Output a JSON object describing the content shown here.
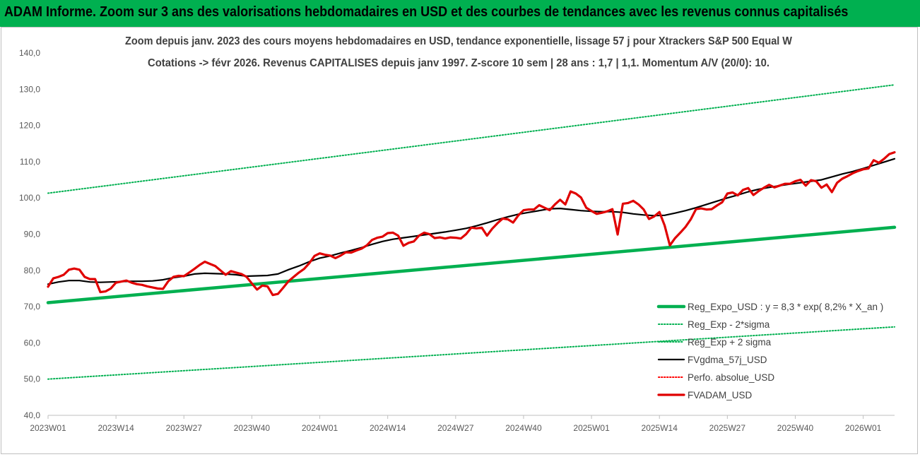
{
  "banner": {
    "title": "ADAM Informe. Zoom sur 3 ans des valorisations hebdomadaires en USD et des courbes de tendances avec les revenus connus capitalisés",
    "background": "#00b050"
  },
  "chart_data": {
    "type": "line",
    "title_lines": [
      "Zoom depuis janv. 2023 des cours moyens hebdomadaires en USD, tendance exponentielle, lissage 57 j pour Xtrackers S&P 500 Equal W",
      "Cotations -> févr 2026. Revenus CAPITALISES depuis janv 1997. Z-score 10 sem | 28 ans : 1,7 | 1,1. Momentum A/V (20/0): 10."
    ],
    "ylim": [
      40,
      140
    ],
    "yticks": [
      "40,0",
      "50,0",
      "60,0",
      "70,0",
      "80,0",
      "90,0",
      "100,0",
      "110,0",
      "120,0",
      "130,0",
      "140,0"
    ],
    "x_range_weeks": [
      0,
      162
    ],
    "xticks": [
      {
        "label": "2023W01",
        "week": 0
      },
      {
        "label": "2023W14",
        "week": 13
      },
      {
        "label": "2023W27",
        "week": 26
      },
      {
        "label": "2023W40",
        "week": 39
      },
      {
        "label": "2024W01",
        "week": 52
      },
      {
        "label": "2024W14",
        "week": 65
      },
      {
        "label": "2024W27",
        "week": 78
      },
      {
        "label": "2024W40",
        "week": 91
      },
      {
        "label": "2025W01",
        "week": 104
      },
      {
        "label": "2025W14",
        "week": 117
      },
      {
        "label": "2025W27",
        "week": 130
      },
      {
        "label": "2025W40",
        "week": 143
      },
      {
        "label": "2026W01",
        "week": 156
      }
    ],
    "grid": false,
    "legend_position": "bottom-right",
    "series": [
      {
        "name": "Reg_Expo_USD : y = 8,3 * exp( 8,2% *  X_an )",
        "style": "solid-thick",
        "color": "#00b050",
        "points": [
          [
            0,
            71.1
          ],
          [
            162,
            91.9
          ]
        ]
      },
      {
        "name": "Reg_Exp - 2*sigma",
        "style": "dotted",
        "color": "#00b050",
        "points": [
          [
            0,
            50.0
          ],
          [
            162,
            64.4
          ]
        ]
      },
      {
        "name": "Reg_Exp + 2 sigma",
        "style": "dotted",
        "color": "#00b050",
        "points": [
          [
            0,
            101.3
          ],
          [
            162,
            131.2
          ]
        ]
      },
      {
        "name": "FVgdma_57j_USD",
        "style": "solid",
        "color": "#000000",
        "points": [
          [
            0,
            76.2
          ],
          [
            2,
            76.8
          ],
          [
            4,
            77.2
          ],
          [
            6,
            77.2
          ],
          [
            8,
            76.8
          ],
          [
            10,
            76.7
          ],
          [
            12,
            76.8
          ],
          [
            14,
            76.9
          ],
          [
            16,
            77.0
          ],
          [
            18,
            77.0
          ],
          [
            20,
            77.1
          ],
          [
            22,
            77.4
          ],
          [
            24,
            78.0
          ],
          [
            26,
            78.4
          ],
          [
            28,
            79.0
          ],
          [
            30,
            79.2
          ],
          [
            32,
            79.1
          ],
          [
            34,
            79.0
          ],
          [
            36,
            78.8
          ],
          [
            38,
            78.4
          ],
          [
            40,
            78.5
          ],
          [
            42,
            78.6
          ],
          [
            44,
            79.0
          ],
          [
            46,
            80.2
          ],
          [
            48,
            81.2
          ],
          [
            50,
            82.4
          ],
          [
            52,
            83.4
          ],
          [
            54,
            84.0
          ],
          [
            56,
            84.8
          ],
          [
            58,
            85.5
          ],
          [
            60,
            86.3
          ],
          [
            62,
            87.2
          ],
          [
            64,
            88.0
          ],
          [
            66,
            88.6
          ],
          [
            68,
            89.0
          ],
          [
            70,
            89.4
          ],
          [
            72,
            89.8
          ],
          [
            74,
            90.2
          ],
          [
            76,
            90.6
          ],
          [
            78,
            91.1
          ],
          [
            80,
            91.6
          ],
          [
            82,
            92.3
          ],
          [
            84,
            93.1
          ],
          [
            86,
            94.0
          ],
          [
            88,
            94.8
          ],
          [
            90,
            95.5
          ],
          [
            92,
            96.0
          ],
          [
            94,
            96.5
          ],
          [
            96,
            97.0
          ],
          [
            98,
            97.1
          ],
          [
            100,
            96.8
          ],
          [
            102,
            96.5
          ],
          [
            104,
            96.3
          ],
          [
            106,
            96.2
          ],
          [
            108,
            96.2
          ],
          [
            110,
            96.0
          ],
          [
            112,
            95.6
          ],
          [
            114,
            95.3
          ],
          [
            116,
            95.1
          ],
          [
            118,
            95.2
          ],
          [
            120,
            95.8
          ],
          [
            122,
            96.5
          ],
          [
            124,
            97.3
          ],
          [
            126,
            98.2
          ],
          [
            128,
            99.1
          ],
          [
            130,
            100.0
          ],
          [
            132,
            100.8
          ],
          [
            134,
            101.7
          ],
          [
            136,
            102.4
          ],
          [
            138,
            102.9
          ],
          [
            140,
            103.4
          ],
          [
            142,
            103.8
          ],
          [
            144,
            104.2
          ],
          [
            146,
            104.6
          ],
          [
            148,
            105.0
          ],
          [
            150,
            105.8
          ],
          [
            152,
            106.6
          ],
          [
            154,
            107.3
          ],
          [
            156,
            108.1
          ],
          [
            158,
            109.0
          ],
          [
            160,
            109.9
          ],
          [
            162,
            110.8
          ]
        ]
      },
      {
        "name": "Perfo. absolue_USD",
        "style": "dotted",
        "color": "#ff0000",
        "points": []
      },
      {
        "name": "FVADAM_USD",
        "style": "solid-thick",
        "color": "#e00000",
        "points": [
          [
            0,
            75.5
          ],
          [
            1,
            77.8
          ],
          [
            2,
            78.2
          ],
          [
            3,
            78.8
          ],
          [
            4,
            80.2
          ],
          [
            5,
            80.5
          ],
          [
            6,
            80.2
          ],
          [
            7,
            78.2
          ],
          [
            8,
            77.6
          ],
          [
            9,
            77.6
          ],
          [
            10,
            74.0
          ],
          [
            11,
            74.2
          ],
          [
            12,
            75.0
          ],
          [
            13,
            76.6
          ],
          [
            14,
            76.9
          ],
          [
            15,
            77.2
          ],
          [
            16,
            76.6
          ],
          [
            17,
            76.2
          ],
          [
            18,
            76.0
          ],
          [
            19,
            75.6
          ],
          [
            20,
            75.3
          ],
          [
            21,
            75.0
          ],
          [
            22,
            74.9
          ],
          [
            23,
            77.0
          ],
          [
            24,
            78.2
          ],
          [
            25,
            78.5
          ],
          [
            26,
            78.4
          ],
          [
            27,
            79.4
          ],
          [
            28,
            80.4
          ],
          [
            29,
            81.5
          ],
          [
            30,
            82.4
          ],
          [
            31,
            81.8
          ],
          [
            32,
            81.2
          ],
          [
            33,
            80.0
          ],
          [
            34,
            78.8
          ],
          [
            35,
            79.8
          ],
          [
            36,
            79.4
          ],
          [
            37,
            79.0
          ],
          [
            38,
            78.2
          ],
          [
            39,
            76.4
          ],
          [
            40,
            74.7
          ],
          [
            41,
            75.8
          ],
          [
            42,
            75.6
          ],
          [
            43,
            73.2
          ],
          [
            44,
            73.5
          ],
          [
            45,
            75.2
          ],
          [
            46,
            77.0
          ],
          [
            47,
            78.2
          ],
          [
            48,
            79.4
          ],
          [
            49,
            80.4
          ],
          [
            50,
            82.0
          ],
          [
            51,
            84.0
          ],
          [
            52,
            84.7
          ],
          [
            53,
            84.3
          ],
          [
            54,
            84.1
          ],
          [
            55,
            83.4
          ],
          [
            56,
            84.1
          ],
          [
            57,
            85.0
          ],
          [
            58,
            84.9
          ],
          [
            59,
            85.5
          ],
          [
            60,
            86.0
          ],
          [
            61,
            86.9
          ],
          [
            62,
            88.4
          ],
          [
            63,
            89.0
          ],
          [
            64,
            89.3
          ],
          [
            65,
            90.3
          ],
          [
            66,
            90.4
          ],
          [
            67,
            89.6
          ],
          [
            68,
            86.8
          ],
          [
            69,
            87.6
          ],
          [
            70,
            88.0
          ],
          [
            71,
            89.6
          ],
          [
            72,
            90.4
          ],
          [
            73,
            90.0
          ],
          [
            74,
            88.9
          ],
          [
            75,
            89.1
          ],
          [
            76,
            88.8
          ],
          [
            77,
            89.1
          ],
          [
            78,
            89.0
          ],
          [
            79,
            88.8
          ],
          [
            80,
            90.0
          ],
          [
            81,
            91.8
          ],
          [
            82,
            91.6
          ],
          [
            83,
            91.8
          ],
          [
            84,
            89.6
          ],
          [
            85,
            91.5
          ],
          [
            86,
            93.0
          ],
          [
            87,
            94.3
          ],
          [
            88,
            94.1
          ],
          [
            89,
            93.2
          ],
          [
            90,
            95.2
          ],
          [
            91,
            96.6
          ],
          [
            92,
            96.8
          ],
          [
            93,
            96.8
          ],
          [
            94,
            98.0
          ],
          [
            95,
            97.3
          ],
          [
            96,
            96.6
          ],
          [
            97,
            98.2
          ],
          [
            98,
            99.5
          ],
          [
            99,
            98.2
          ],
          [
            100,
            101.8
          ],
          [
            101,
            101.2
          ],
          [
            102,
            100.1
          ],
          [
            103,
            97.3
          ],
          [
            104,
            96.4
          ],
          [
            105,
            95.6
          ],
          [
            106,
            95.9
          ],
          [
            107,
            96.3
          ],
          [
            108,
            96.9
          ],
          [
            109,
            89.9
          ],
          [
            110,
            98.4
          ],
          [
            111,
            98.6
          ],
          [
            112,
            99.2
          ],
          [
            113,
            98.2
          ],
          [
            114,
            96.8
          ],
          [
            115,
            94.2
          ],
          [
            116,
            94.9
          ],
          [
            117,
            96.1
          ],
          [
            118,
            92.4
          ],
          [
            119,
            86.9
          ],
          [
            120,
            88.9
          ],
          [
            121,
            90.4
          ],
          [
            122,
            92.0
          ],
          [
            123,
            94.1
          ],
          [
            124,
            96.9
          ],
          [
            125,
            97.1
          ],
          [
            126,
            96.8
          ],
          [
            127,
            96.9
          ],
          [
            128,
            97.9
          ],
          [
            129,
            98.8
          ],
          [
            130,
            101.2
          ],
          [
            131,
            101.5
          ],
          [
            132,
            100.7
          ],
          [
            133,
            102.2
          ],
          [
            134,
            102.7
          ],
          [
            135,
            100.8
          ],
          [
            136,
            101.9
          ],
          [
            137,
            102.8
          ],
          [
            138,
            103.6
          ],
          [
            139,
            102.9
          ],
          [
            140,
            103.4
          ],
          [
            141,
            103.9
          ],
          [
            142,
            103.9
          ],
          [
            143,
            104.6
          ],
          [
            144,
            105.0
          ],
          [
            145,
            103.4
          ],
          [
            146,
            104.9
          ],
          [
            147,
            104.6
          ],
          [
            148,
            102.8
          ],
          [
            149,
            103.7
          ],
          [
            150,
            101.6
          ],
          [
            151,
            104.2
          ],
          [
            152,
            105.3
          ],
          [
            153,
            106.0
          ],
          [
            154,
            106.8
          ],
          [
            155,
            107.4
          ],
          [
            156,
            107.9
          ],
          [
            157,
            108.1
          ],
          [
            158,
            110.4
          ],
          [
            159,
            109.7
          ],
          [
            160,
            110.8
          ],
          [
            161,
            112.1
          ],
          [
            162,
            112.6
          ]
        ]
      }
    ]
  }
}
